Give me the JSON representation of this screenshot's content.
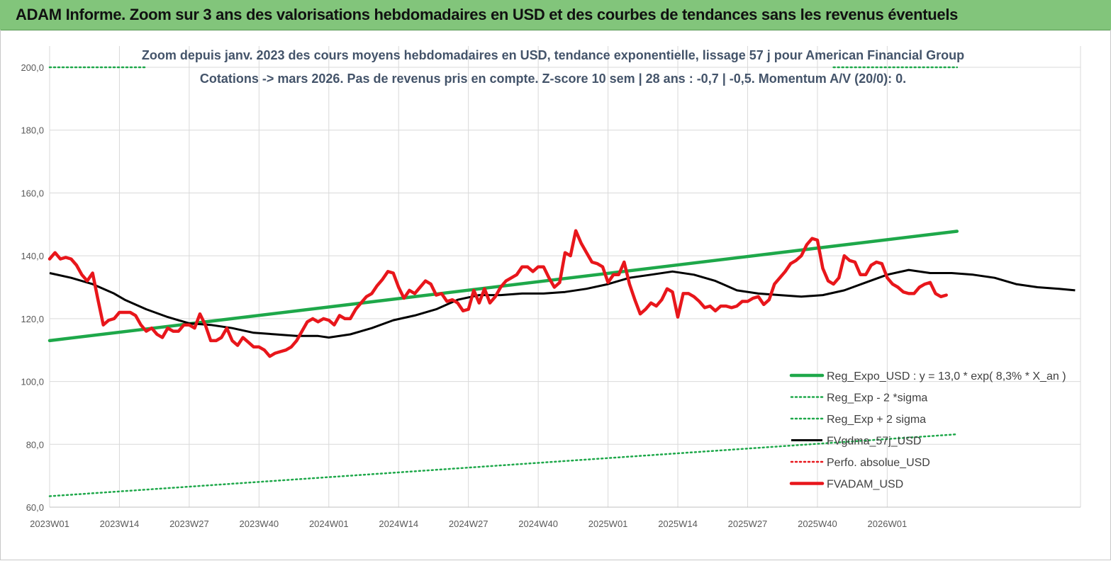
{
  "banner": {
    "title": "ADAM Informe. Zoom sur 3 ans des valorisations hebdomadaires en USD et des courbes de tendances sans les revenus éventuels"
  },
  "colors": {
    "banner_bg": "#82c57b",
    "reg_expo": "#1ea84a",
    "fvgdma": "#000000",
    "fvadam": "#e8161b",
    "perfo": "#e8161b",
    "grid": "#d9d9d9"
  },
  "chart_data": {
    "type": "line",
    "title_line1": "Zoom depuis janv. 2023 des cours moyens hebdomadaires en USD, tendance exponentielle, lissage 57 j pour American Financial Group",
    "title_line2": "Cotations -> mars 2026. Pas de revenus pris en  compte. Z-score 10 sem  | 28 ans : -0,7 | -0,5. Momentum A/V (20/0): 0.",
    "ylim": [
      60,
      200
    ],
    "yticks": [
      "200,0",
      "180,0",
      "160,0",
      "140,0",
      "120,0",
      "100,0",
      "80,0",
      "60,0"
    ],
    "xticks": [
      "2023W01",
      "2023W14",
      "2023W27",
      "2023W40",
      "2024W01",
      "2024W14",
      "2024W27",
      "2024W40",
      "2025W01",
      "2025W14",
      "2025W27",
      "2025W40",
      "2026W01"
    ],
    "x_range_weeks": [
      0,
      169
    ],
    "grid": "vertical and horizontal",
    "legend_position": "bottom-right",
    "series": [
      {
        "name": "Reg_Expo_USD : y = 13,0 * exp( 8,3% *  X_an )",
        "style": "thick-solid",
        "color": "#1ea84a",
        "points": [
          [
            0,
            113.0
          ],
          [
            169,
            147.8
          ]
        ]
      },
      {
        "name": "Reg_Exp - 2 *sigma",
        "style": "dotted",
        "color": "#1ea84a",
        "points": [
          [
            0,
            63.5
          ],
          [
            169,
            83.2
          ]
        ]
      },
      {
        "name": "Reg_Exp + 2 sigma",
        "style": "dotted",
        "color": "#1ea84a",
        "points": [
          [
            0,
            200.0
          ],
          [
            18,
            200.0
          ],
          [
            146,
            200.0
          ],
          [
            169,
            200.0
          ]
        ]
      },
      {
        "name": "FVgdma_57j_USD",
        "style": "solid",
        "color": "#000000",
        "points": [
          [
            0,
            134.5
          ],
          [
            4,
            133
          ],
          [
            8,
            131
          ],
          [
            12,
            128
          ],
          [
            14,
            126
          ],
          [
            18,
            123
          ],
          [
            22,
            120.5
          ],
          [
            26,
            118.5
          ],
          [
            30,
            118
          ],
          [
            34,
            117
          ],
          [
            38,
            115.5
          ],
          [
            42,
            115
          ],
          [
            46,
            114.5
          ],
          [
            50,
            114.5
          ],
          [
            52,
            114
          ],
          [
            56,
            115
          ],
          [
            60,
            117
          ],
          [
            64,
            119.5
          ],
          [
            68,
            121
          ],
          [
            72,
            123
          ],
          [
            76,
            126
          ],
          [
            80,
            127.5
          ],
          [
            84,
            127.5
          ],
          [
            88,
            128
          ],
          [
            92,
            128
          ],
          [
            96,
            128.5
          ],
          [
            100,
            129.5
          ],
          [
            104,
            131
          ],
          [
            108,
            133
          ],
          [
            112,
            134
          ],
          [
            116,
            135
          ],
          [
            120,
            134
          ],
          [
            124,
            132
          ],
          [
            128,
            129
          ],
          [
            132,
            128
          ],
          [
            136,
            127.5
          ],
          [
            140,
            127
          ],
          [
            144,
            127.5
          ],
          [
            148,
            129
          ],
          [
            152,
            131.5
          ],
          [
            156,
            134
          ],
          [
            160,
            135.5
          ],
          [
            164,
            134.5
          ],
          [
            168,
            134.5
          ],
          [
            172,
            134
          ],
          [
            176,
            133
          ],
          [
            180,
            131
          ],
          [
            184,
            130
          ],
          [
            188,
            129.5
          ],
          [
            191,
            129
          ]
        ]
      },
      {
        "name": "Perfo. absolue_USD",
        "style": "dotted",
        "color": "#e8161b",
        "points": []
      },
      {
        "name": "FVADAM_USD",
        "style": "thick-solid",
        "color": "#e8161b",
        "points": [
          [
            0,
            139
          ],
          [
            1,
            141
          ],
          [
            2,
            139
          ],
          [
            3,
            139.5
          ],
          [
            4,
            139
          ],
          [
            5,
            137
          ],
          [
            6,
            134
          ],
          [
            7,
            132
          ],
          [
            8,
            134.5
          ],
          [
            9,
            126
          ],
          [
            10,
            118
          ],
          [
            11,
            119.5
          ],
          [
            12,
            120
          ],
          [
            13,
            122
          ],
          [
            14,
            122
          ],
          [
            15,
            122
          ],
          [
            16,
            121
          ],
          [
            17,
            118
          ],
          [
            18,
            116
          ],
          [
            19,
            117
          ],
          [
            20,
            115
          ],
          [
            21,
            114
          ],
          [
            22,
            117
          ],
          [
            23,
            116
          ],
          [
            24,
            116
          ],
          [
            25,
            118
          ],
          [
            26,
            118
          ],
          [
            27,
            117
          ],
          [
            28,
            121.5
          ],
          [
            29,
            118
          ],
          [
            30,
            113
          ],
          [
            31,
            113
          ],
          [
            32,
            114
          ],
          [
            33,
            117
          ],
          [
            34,
            113
          ],
          [
            35,
            111.5
          ],
          [
            36,
            114
          ],
          [
            37,
            112.5
          ],
          [
            38,
            111
          ],
          [
            39,
            111
          ],
          [
            40,
            110
          ],
          [
            41,
            108
          ],
          [
            42,
            109
          ],
          [
            43,
            109.5
          ],
          [
            44,
            110
          ],
          [
            45,
            111
          ],
          [
            46,
            113
          ],
          [
            47,
            116
          ],
          [
            48,
            119
          ],
          [
            49,
            120
          ],
          [
            50,
            119
          ],
          [
            51,
            120
          ],
          [
            52,
            119.5
          ],
          [
            53,
            118
          ],
          [
            54,
            121
          ],
          [
            55,
            120
          ],
          [
            56,
            120
          ],
          [
            57,
            123
          ],
          [
            58,
            125
          ],
          [
            59,
            127
          ],
          [
            60,
            128
          ],
          [
            61,
            130.5
          ],
          [
            62,
            132.5
          ],
          [
            63,
            135
          ],
          [
            64,
            134.5
          ],
          [
            65,
            130
          ],
          [
            66,
            126.5
          ],
          [
            67,
            129
          ],
          [
            68,
            128
          ],
          [
            69,
            130
          ],
          [
            70,
            132
          ],
          [
            71,
            131
          ],
          [
            72,
            127.5
          ],
          [
            73,
            128
          ],
          [
            74,
            125.5
          ],
          [
            75,
            126
          ],
          [
            76,
            125
          ],
          [
            77,
            122.5
          ],
          [
            78,
            123
          ],
          [
            79,
            129
          ],
          [
            80,
            125
          ],
          [
            81,
            129.5
          ],
          [
            82,
            125
          ],
          [
            83,
            127
          ],
          [
            84,
            130
          ],
          [
            85,
            132
          ],
          [
            86,
            133
          ],
          [
            87,
            134
          ],
          [
            88,
            136.5
          ],
          [
            89,
            136.5
          ],
          [
            90,
            135
          ],
          [
            91,
            136.5
          ],
          [
            92,
            136.5
          ],
          [
            93,
            133
          ],
          [
            94,
            130
          ],
          [
            95,
            131.5
          ],
          [
            96,
            141
          ],
          [
            97,
            140
          ],
          [
            98,
            148
          ],
          [
            99,
            144
          ],
          [
            100,
            141
          ],
          [
            101,
            138
          ],
          [
            102,
            137.5
          ],
          [
            103,
            136.5
          ],
          [
            104,
            131.5
          ],
          [
            105,
            134
          ],
          [
            106,
            134
          ],
          [
            107,
            138
          ],
          [
            108,
            131
          ],
          [
            109,
            126
          ],
          [
            110,
            121.5
          ],
          [
            111,
            123
          ],
          [
            112,
            125
          ],
          [
            113,
            124
          ],
          [
            114,
            126
          ],
          [
            115,
            129.5
          ],
          [
            116,
            128.5
          ],
          [
            117,
            120.5
          ],
          [
            118,
            128
          ],
          [
            119,
            128
          ],
          [
            120,
            127
          ],
          [
            121,
            125.5
          ],
          [
            122,
            123.5
          ],
          [
            123,
            124
          ],
          [
            124,
            122.5
          ],
          [
            125,
            124
          ],
          [
            126,
            124
          ],
          [
            127,
            123.5
          ],
          [
            128,
            124
          ],
          [
            129,
            125.5
          ],
          [
            130,
            125.5
          ],
          [
            131,
            126.5
          ],
          [
            132,
            127
          ],
          [
            133,
            124.5
          ],
          [
            134,
            126
          ],
          [
            135,
            131
          ],
          [
            136,
            133
          ],
          [
            137,
            135
          ],
          [
            138,
            137.5
          ],
          [
            139,
            138.5
          ],
          [
            140,
            140
          ],
          [
            141,
            143.5
          ],
          [
            142,
            145.5
          ],
          [
            143,
            145
          ],
          [
            144,
            136
          ],
          [
            145,
            132
          ],
          [
            146,
            131
          ],
          [
            147,
            133
          ],
          [
            148,
            140
          ],
          [
            149,
            138.5
          ],
          [
            150,
            138
          ],
          [
            151,
            134
          ],
          [
            152,
            134
          ],
          [
            153,
            137
          ],
          [
            154,
            138
          ],
          [
            155,
            137.5
          ],
          [
            156,
            133
          ],
          [
            157,
            131
          ],
          [
            158,
            130
          ],
          [
            159,
            128.5
          ],
          [
            160,
            128
          ],
          [
            161,
            128
          ],
          [
            162,
            130
          ],
          [
            163,
            131
          ],
          [
            164,
            131.5
          ],
          [
            165,
            128
          ],
          [
            166,
            127
          ],
          [
            167,
            127.5
          ]
        ]
      }
    ]
  }
}
